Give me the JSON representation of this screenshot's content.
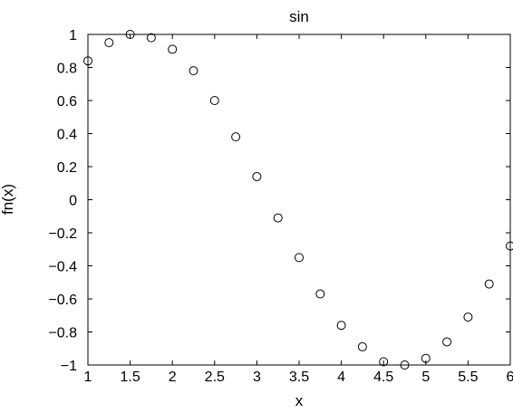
{
  "chart_data": {
    "type": "scatter",
    "title": "sin",
    "xlabel": "x",
    "ylabel": "fn(x)",
    "xlim": [
      1,
      6
    ],
    "ylim": [
      -1,
      1
    ],
    "xticks": [
      1,
      1.5,
      2,
      2.5,
      3,
      3.5,
      4,
      4.5,
      5,
      5.5,
      6
    ],
    "xtick_labels": [
      "1",
      "1.5",
      "2",
      "2.5",
      "3",
      "3.5",
      "4",
      "4.5",
      "5",
      "5.5",
      "6"
    ],
    "yticks": [
      -1,
      -0.8,
      -0.6,
      -0.4,
      -0.2,
      0,
      0.2,
      0.4,
      0.6,
      0.8,
      1
    ],
    "ytick_labels": [
      "−1",
      "−0.8",
      "−0.6",
      "−0.4",
      "−0.2",
      "0",
      "0.2",
      "0.4",
      "0.6",
      "0.8",
      "1"
    ],
    "grid": false,
    "marker": "open-circle",
    "series": [
      {
        "x": [
          1,
          1.25,
          1.5,
          1.75,
          2,
          2.25,
          2.5,
          2.75,
          3,
          3.25,
          3.5,
          3.75,
          4,
          4.25,
          4.5,
          4.75,
          5,
          5.25,
          5.5,
          5.75,
          6
        ],
        "y": [
          0.84,
          0.95,
          1.0,
          0.98,
          0.91,
          0.78,
          0.6,
          0.38,
          0.14,
          -0.11,
          -0.35,
          -0.57,
          -0.76,
          -0.89,
          -0.98,
          -1.0,
          -0.96,
          -0.86,
          -0.71,
          -0.51,
          -0.28
        ]
      }
    ],
    "colors": {
      "marker": "#000000",
      "axes": "#000000",
      "background": "#ffffff"
    }
  }
}
